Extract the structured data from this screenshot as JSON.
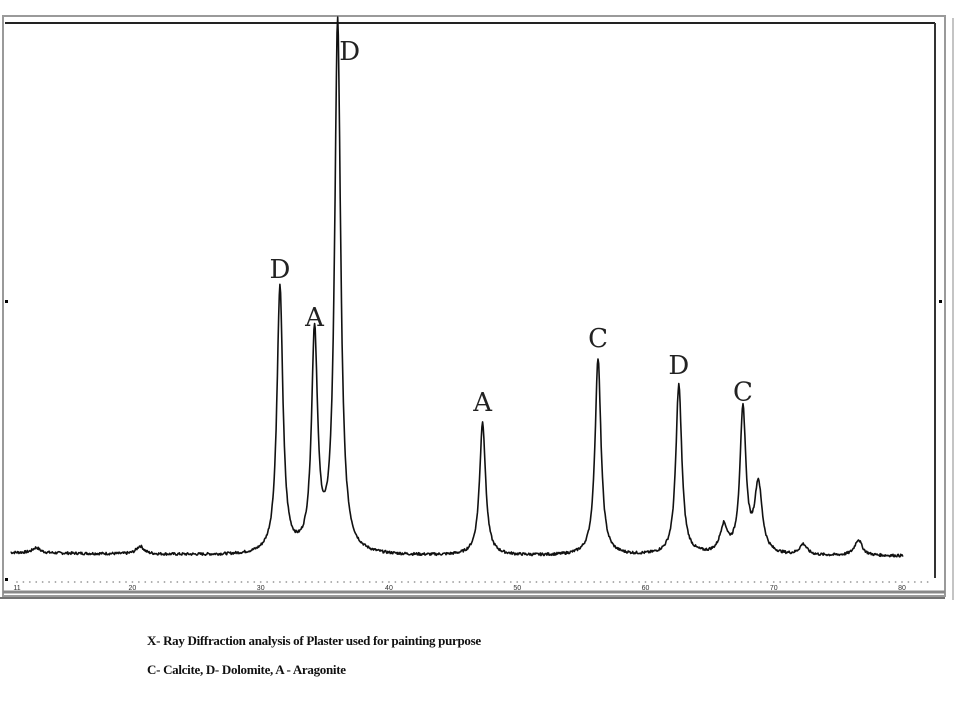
{
  "caption": {
    "title": "X- Ray Diffraction analysis of Plaster used for painting purpose",
    "legend": "C- Calcite, D- Dolomite, A - Aragonite"
  },
  "colors": {
    "trace": "#111111",
    "frame": "#555555",
    "background": "#ffffff"
  },
  "chart_data": {
    "type": "line",
    "title": "X- Ray Diffraction analysis of Plaster used for painting purpose",
    "subtitle": "C- Calcite, D- Dolomite, A - Aragonite",
    "xlabel": "",
    "ylabel": "",
    "xlim": [
      10,
      82
    ],
    "ylim": [
      0,
      100
    ],
    "grid": false,
    "legend_position": "below chart (caption)",
    "x_ticks": [
      11,
      20,
      30,
      40,
      50,
      60,
      70,
      80
    ],
    "x_tick_labels": [
      "11",
      "20",
      "30",
      "40",
      "50",
      "60",
      "70",
      "80"
    ],
    "baseline_intensity": 3,
    "peaks": [
      {
        "two_theta": 31.5,
        "intensity": 50,
        "label": "D",
        "phase": "Dolomite"
      },
      {
        "two_theta": 34.2,
        "intensity": 41,
        "label": "A",
        "phase": "Aragonite"
      },
      {
        "two_theta": 36.0,
        "intensity": 100,
        "label": "D",
        "phase": "Dolomite"
      },
      {
        "two_theta": 47.3,
        "intensity": 25,
        "label": "A",
        "phase": "Aragonite"
      },
      {
        "two_theta": 56.3,
        "intensity": 37,
        "label": "C",
        "phase": "Calcite"
      },
      {
        "two_theta": 62.6,
        "intensity": 32,
        "label": "D",
        "phase": "Dolomite"
      },
      {
        "two_theta": 66.1,
        "intensity": 5,
        "label": "",
        "phase": ""
      },
      {
        "two_theta": 67.6,
        "intensity": 27,
        "label": "C",
        "phase": "Calcite"
      },
      {
        "two_theta": 68.8,
        "intensity": 13,
        "label": "",
        "phase": ""
      },
      {
        "two_theta": 72.3,
        "intensity": 2,
        "label": "",
        "phase": ""
      },
      {
        "two_theta": 76.6,
        "intensity": 3,
        "label": "",
        "phase": ""
      },
      {
        "two_theta": 12.5,
        "intensity": 1,
        "label": "",
        "phase": ""
      },
      {
        "two_theta": 20.6,
        "intensity": 1.5,
        "label": "",
        "phase": ""
      }
    ],
    "annotations": [
      {
        "text": "D",
        "two_theta": 31.5
      },
      {
        "text": "A",
        "two_theta": 34.2
      },
      {
        "text": "D",
        "two_theta": 36.0
      },
      {
        "text": "A",
        "two_theta": 47.3
      },
      {
        "text": "C",
        "two_theta": 56.3
      },
      {
        "text": "D",
        "two_theta": 62.6
      },
      {
        "text": "C",
        "two_theta": 67.6
      }
    ]
  }
}
